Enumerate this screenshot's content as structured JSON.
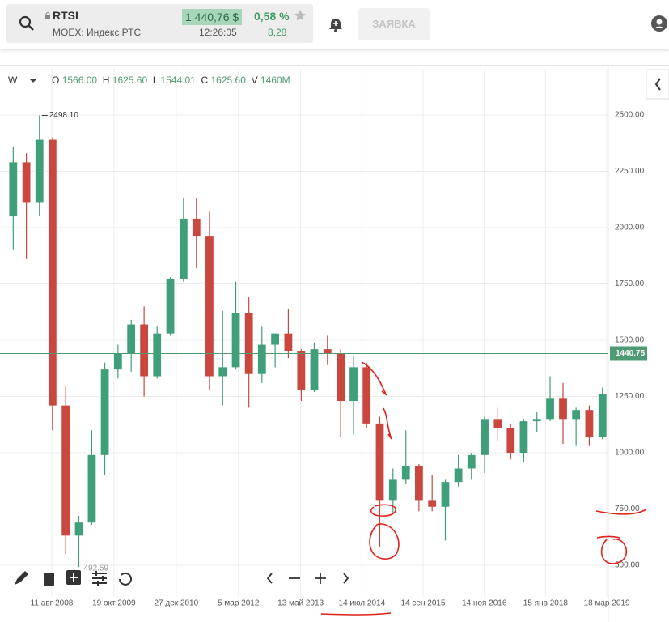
{
  "header": {
    "ticker": "RTSI",
    "exchange": "MOEX: Индекс РТС",
    "price": "1 440,76 $",
    "time": "12:26:05",
    "change_pct": "0,58 %",
    "change": "8,28",
    "order_button": "ЗАЯВКА"
  },
  "legend": {
    "interval": "W",
    "o_label": "O",
    "o": "1566.00",
    "h_label": "H",
    "h": "1625.60",
    "l_label": "L",
    "l": "1544.01",
    "c_label": "C",
    "c": "1625.60",
    "v_label": "V",
    "v": "1460M"
  },
  "chart_data": {
    "type": "candlestick",
    "x": [
      "2007-10",
      "2008-01",
      "2008-04",
      "2008-07",
      "2008-10",
      "2009-01",
      "2009-04",
      "2009-07",
      "2009-10",
      "2010-01",
      "2010-04",
      "2010-07",
      "2010-10",
      "2011-01",
      "2011-04",
      "2011-07",
      "2011-10",
      "2012-01",
      "2012-04",
      "2012-07",
      "2012-10",
      "2013-01",
      "2013-04",
      "2013-07",
      "2013-10",
      "2014-01",
      "2014-04",
      "2014-07",
      "2014-10",
      "2015-01",
      "2015-04",
      "2015-07",
      "2015-10",
      "2016-01",
      "2016-04",
      "2016-07",
      "2016-10",
      "2017-01",
      "2017-04",
      "2017-07",
      "2017-10",
      "2018-01",
      "2018-04",
      "2018-07",
      "2018-10",
      "2019-01"
    ],
    "open": [
      2050,
      2290,
      2110,
      2390,
      1210,
      632,
      690,
      990,
      1370,
      1440,
      1570,
      1340,
      1530,
      1770,
      2040,
      1960,
      1340,
      1380,
      1620,
      1350,
      1480,
      1530,
      1450,
      1280,
      1460,
      1440,
      1230,
      1380,
      1130,
      790,
      880,
      940,
      790,
      760,
      870,
      930,
      990,
      1150,
      1110,
      1000,
      1140,
      1150,
      1240,
      1150,
      1190,
      1070
    ],
    "high": [
      2360,
      2330,
      2498.1,
      2400,
      1300,
      720,
      1100,
      1400,
      1480,
      1590,
      1650,
      1560,
      1780,
      2130,
      2130,
      2070,
      1630,
      1760,
      1690,
      1560,
      1530,
      1640,
      1460,
      1490,
      1520,
      1460,
      1430,
      1400,
      1160,
      930,
      1100,
      950,
      900,
      880,
      990,
      1000,
      1160,
      1200,
      1130,
      1150,
      1180,
      1340,
      1310,
      1200,
      1210,
      1290
    ],
    "low": [
      1900,
      1860,
      2050,
      1100,
      550,
      492.59,
      680,
      900,
      1330,
      1360,
      1250,
      1330,
      1520,
      1760,
      1820,
      1280,
      1210,
      1370,
      1200,
      1310,
      1380,
      1420,
      1230,
      1270,
      1390,
      1070,
      1080,
      1110,
      580,
      730,
      860,
      740,
      740,
      610,
      850,
      880,
      910,
      1050,
      970,
      960,
      1090,
      1140,
      1040,
      1030,
      1030,
      1060
    ],
    "close": [
      2290,
      2110,
      2390,
      1210,
      632,
      690,
      990,
      1370,
      1440,
      1570,
      1340,
      1530,
      1770,
      2040,
      1960,
      1340,
      1380,
      1620,
      1350,
      1480,
      1530,
      1450,
      1280,
      1460,
      1440,
      1230,
      1380,
      1130,
      790,
      880,
      940,
      790,
      760,
      870,
      930,
      990,
      1150,
      1110,
      1000,
      1140,
      1150,
      1240,
      1150,
      1190,
      1070,
      1260
    ],
    "up_color": "#3f9f7a",
    "down_color": "#c9473f",
    "xlim": [
      "2007-08-16",
      "2019-03-29"
    ],
    "xticks": [
      {
        "value": "2008-08-11",
        "label": "11 авг 2008"
      },
      {
        "value": "2009-10-19",
        "label": "19 окт 2009"
      },
      {
        "value": "2010-12-27",
        "label": "27 дек 2010"
      },
      {
        "value": "2012-03-05",
        "label": "5 мар 2012"
      },
      {
        "value": "2013-05-13",
        "label": "13 май 2013"
      },
      {
        "value": "2014-07-14",
        "label": "14 июл 2014"
      },
      {
        "value": "2015-09-14",
        "label": "14 сен 2015"
      },
      {
        "value": "2016-11-14",
        "label": "14 ноя 2016"
      },
      {
        "value": "2018-01-15",
        "label": "15 янв 2018"
      },
      {
        "value": "2019-03-18",
        "label": "18 мар 2019"
      }
    ],
    "ylim": [
      367,
      2705
    ],
    "yticks": [
      {
        "value": 500,
        "label": "500.00"
      },
      {
        "value": 750,
        "label": "750.00"
      },
      {
        "value": 1000,
        "label": "1000.00"
      },
      {
        "value": 1250,
        "label": "1250.00"
      },
      {
        "value": 1500,
        "label": "1500.00"
      },
      {
        "value": 1750,
        "label": "1750.00"
      },
      {
        "value": 2000,
        "label": "2000.00"
      },
      {
        "value": 2250,
        "label": "2250.00"
      },
      {
        "value": 2500,
        "label": "2500.00"
      }
    ],
    "grid": true,
    "high_label": {
      "value": 2498.1,
      "label": "2498.10"
    },
    "low_label": {
      "value": 492.59,
      "label": "492.59"
    },
    "last_price": {
      "value": 1440.75,
      "label": "1440.75",
      "color": "#4e9a72"
    }
  }
}
